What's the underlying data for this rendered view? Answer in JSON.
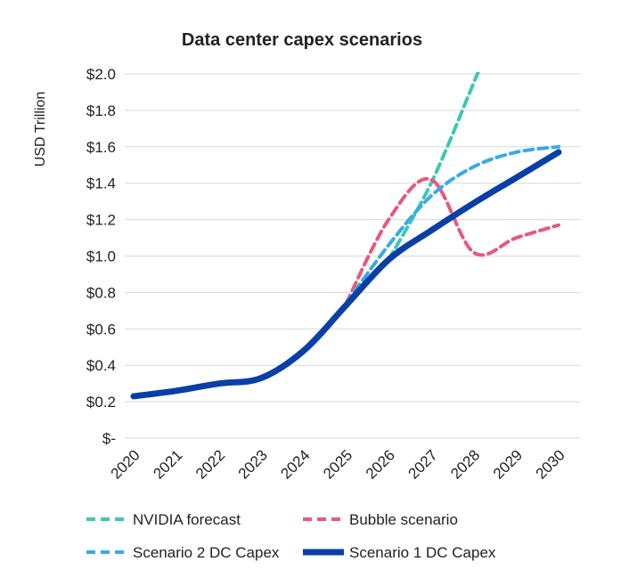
{
  "chart_data": {
    "type": "line",
    "title": "Data center capex scenarios",
    "ylabel": "USD Trillion",
    "xlabel": "",
    "ylim": [
      0,
      2.0
    ],
    "grid": true,
    "legend_placement": "bottom",
    "yticks": [
      {
        "v": 0,
        "label": "$-"
      },
      {
        "v": 0.2,
        "label": "$0.2"
      },
      {
        "v": 0.4,
        "label": "$0.4"
      },
      {
        "v": 0.6,
        "label": "$0.6"
      },
      {
        "v": 0.8,
        "label": "$0.8"
      },
      {
        "v": 1.0,
        "label": "$1.0"
      },
      {
        "v": 1.2,
        "label": "$1.2"
      },
      {
        "v": 1.4,
        "label": "$1.4"
      },
      {
        "v": 1.6,
        "label": "$1.6"
      },
      {
        "v": 1.8,
        "label": "$1.8"
      },
      {
        "v": 2.0,
        "label": "$2.0"
      }
    ],
    "categories": [
      "2020",
      "2021",
      "2022",
      "2023",
      "2024",
      "2025",
      "2026",
      "2027",
      "2028",
      "2029",
      "2030"
    ],
    "series": [
      {
        "name": "NVIDIA forecast",
        "color": "#3cc8b4",
        "style": "dashed",
        "x": [
          2026,
          2027,
          2028
        ],
        "values": [
          0.98,
          1.4,
          1.95
        ]
      },
      {
        "name": "Bubble scenario",
        "color": "#e8587a",
        "style": "dashed",
        "x": [
          2025,
          2026,
          2027,
          2028,
          2029,
          2030
        ],
        "values": [
          0.74,
          1.2,
          1.42,
          1.02,
          1.1,
          1.17
        ]
      },
      {
        "name": "Scenario 2 DC Capex",
        "color": "#3aaae6",
        "style": "dashed",
        "x": [
          2025,
          2026,
          2027,
          2028,
          2029,
          2030
        ],
        "values": [
          0.74,
          1.06,
          1.33,
          1.49,
          1.57,
          1.6
        ]
      },
      {
        "name": "Scenario 1 DC Capex",
        "color": "#0a3fa8",
        "style": "solid",
        "x": [
          2020,
          2021,
          2022,
          2023,
          2024,
          2025,
          2026,
          2027,
          2028,
          2029,
          2030
        ],
        "values": [
          0.23,
          0.26,
          0.3,
          0.33,
          0.48,
          0.73,
          0.98,
          1.14,
          1.29,
          1.43,
          1.57
        ]
      }
    ]
  }
}
